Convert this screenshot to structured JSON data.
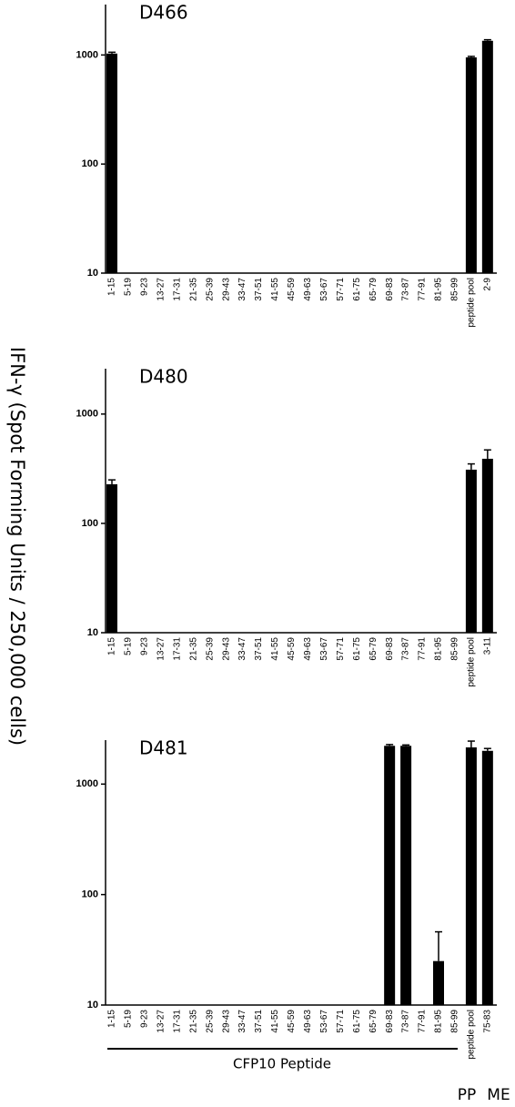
{
  "chart_data": [
    {
      "type": "bar",
      "title": "D466",
      "ylabel": "IFN-γ (Spot Forming Units / 250,000 cells)",
      "log_scale": true,
      "grid": false,
      "color": "#000000",
      "categories": [
        "1-15",
        "5-19",
        "9-23",
        "13-27",
        "17-31",
        "21-35",
        "25-39",
        "29-43",
        "33-47",
        "37-51",
        "41-55",
        "45-59",
        "49-63",
        "53-67",
        "57-71",
        "61-75",
        "65-79",
        "69-83",
        "73-87",
        "77-91",
        "81-95",
        "85-99",
        "peptide pool",
        "2-9"
      ],
      "values": [
        1030,
        null,
        null,
        null,
        null,
        null,
        null,
        null,
        null,
        null,
        null,
        null,
        null,
        null,
        null,
        null,
        null,
        null,
        null,
        null,
        null,
        null,
        950,
        1350
      ],
      "errors": [
        30,
        null,
        null,
        null,
        null,
        null,
        null,
        null,
        null,
        null,
        null,
        null,
        null,
        null,
        null,
        null,
        null,
        null,
        null,
        null,
        null,
        null,
        20,
        30
      ],
      "ylim": [
        10,
        2900
      ],
      "yticks": [
        10,
        100,
        1000
      ]
    },
    {
      "type": "bar",
      "title": "D480",
      "log_scale": true,
      "grid": false,
      "color": "#000000",
      "categories": [
        "1-15",
        "5-19",
        "9-23",
        "13-27",
        "17-31",
        "21-35",
        "25-39",
        "29-43",
        "33-47",
        "37-51",
        "41-55",
        "45-59",
        "49-63",
        "53-67",
        "57-71",
        "61-75",
        "65-79",
        "69-83",
        "73-87",
        "77-91",
        "81-95",
        "85-99",
        "peptide pool",
        "3-11"
      ],
      "values": [
        228,
        null,
        null,
        null,
        null,
        null,
        null,
        null,
        null,
        null,
        null,
        null,
        null,
        null,
        null,
        null,
        null,
        null,
        null,
        null,
        null,
        null,
        310,
        390
      ],
      "errors": [
        22,
        null,
        null,
        null,
        null,
        null,
        null,
        null,
        null,
        null,
        null,
        null,
        null,
        null,
        null,
        null,
        null,
        null,
        null,
        null,
        null,
        null,
        40,
        80
      ],
      "ylim": [
        10,
        2600
      ],
      "yticks": [
        10,
        100,
        1000
      ]
    },
    {
      "type": "bar",
      "title": "D481",
      "xlabel": "CFP10 Peptide",
      "notes": [
        "PP",
        "ME"
      ],
      "log_scale": true,
      "grid": false,
      "color": "#000000",
      "categories": [
        "1-15",
        "5-19",
        "9-23",
        "13-27",
        "17-31",
        "21-35",
        "25-39",
        "29-43",
        "33-47",
        "37-51",
        "41-55",
        "45-59",
        "49-63",
        "53-67",
        "57-71",
        "61-75",
        "65-79",
        "69-83",
        "73-87",
        "77-91",
        "81-95",
        "85-99",
        "peptide pool",
        "75-83"
      ],
      "values": [
        null,
        null,
        null,
        null,
        null,
        null,
        null,
        null,
        null,
        null,
        null,
        null,
        null,
        null,
        null,
        null,
        null,
        2220,
        2220,
        null,
        25,
        null,
        2150,
        2000
      ],
      "errors": [
        null,
        null,
        null,
        null,
        null,
        null,
        null,
        null,
        null,
        null,
        null,
        null,
        null,
        null,
        null,
        null,
        null,
        60,
        40,
        null,
        21,
        null,
        300,
        100
      ],
      "ylim": [
        10,
        2500
      ],
      "yticks": [
        10,
        100,
        1000
      ]
    }
  ]
}
